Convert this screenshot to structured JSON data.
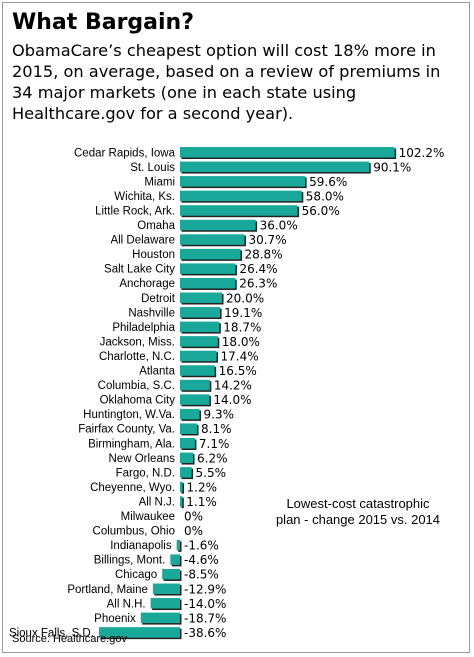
{
  "header": {
    "title": "What Bargain?",
    "subtitle": "ObamaCare’s cheapest option will cost 18% more in 2015, on average, based on a review of premiums in 34 major markets (one in each state using Healthcare.gov for a second year)."
  },
  "footer": {
    "source": "Source: Healthcare.gov"
  },
  "colors": {
    "bar": "#1aa89a",
    "bar_shadow": "#222222"
  },
  "chart_data": {
    "type": "bar",
    "orientation": "horizontal",
    "title": "What Bargain?",
    "annotation": [
      "Lowest-cost catastrophic",
      "plan - change 2015 vs. 2014"
    ],
    "unit": "%",
    "xlim": [
      -38.6,
      102.2
    ],
    "categories": [
      "Cedar Rapids, Iowa",
      "St. Louis",
      "Miami",
      "Wichita, Ks.",
      "Little Rock, Ark.",
      "Omaha",
      "All Delaware",
      "Houston",
      "Salt Lake City",
      "Anchorage",
      "Detroit",
      "Nashville",
      "Philadelphia",
      "Jackson, Miss.",
      "Charlotte, N.C.",
      "Atlanta",
      "Columbia, S.C.",
      "Oklahoma City",
      "Huntington, W.Va.",
      "Fairfax County, Va.",
      "Birmingham, Ala.",
      "New Orleans",
      "Fargo, N.D.",
      "Cheyenne, Wyo.",
      "All N.J.",
      "Milwaukee",
      "Columbus, Ohio",
      "Indianapolis",
      "Billings, Mont.",
      "Chicago",
      "Portland, Maine",
      "All N.H.",
      "Phoenix",
      "Sioux Falls, S.D."
    ],
    "values": [
      102.2,
      90.1,
      59.6,
      58.0,
      56.0,
      36.0,
      30.7,
      28.8,
      26.4,
      26.3,
      20.0,
      19.1,
      18.7,
      18.0,
      17.4,
      16.5,
      14.2,
      14.0,
      9.3,
      8.1,
      7.1,
      6.2,
      5.5,
      1.2,
      1.1,
      0,
      0,
      -1.6,
      -4.6,
      -8.5,
      -12.9,
      -14.0,
      -18.7,
      -38.6
    ],
    "value_labels": [
      "102.2%",
      "90.1%",
      "59.6%",
      "58.0%",
      "56.0%",
      "36.0%",
      "30.7%",
      "28.8%",
      "26.4%",
      "26.3%",
      "20.0%",
      "19.1%",
      "18.7%",
      "18.0%",
      "17.4%",
      "16.5%",
      "14.2%",
      "14.0%",
      "9.3%",
      "8.1%",
      "7.1%",
      "6.2%",
      "5.5%",
      "1.2%",
      "1.1%",
      "0%",
      "0%",
      "-1.6%",
      "-4.6%",
      "-8.5%",
      "-12.9%",
      "-14.0%",
      "-18.7%",
      "-38.6%"
    ]
  }
}
